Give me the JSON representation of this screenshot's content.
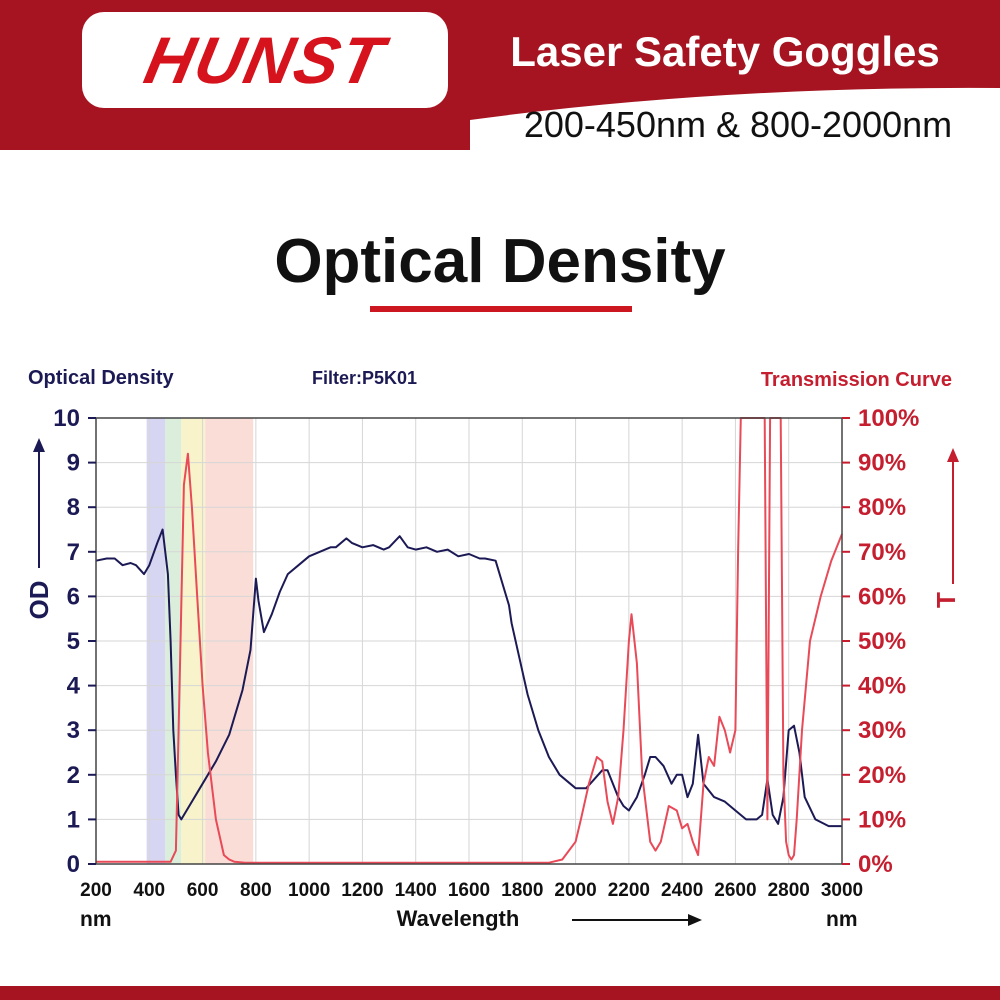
{
  "brand": {
    "logo_text": "HUNST",
    "title": "Laser Safety Goggles",
    "subtitle": "200-450nm & 800-2000nm",
    "accent_color": "#a51420"
  },
  "section_title": "Optical Density",
  "chart_data": {
    "type": "line",
    "title": "Filter:P5K01",
    "left_axis_label": "Optical Density",
    "left_axis_short": "OD",
    "right_axis_label": "Transmission Curve",
    "right_axis_short": "T",
    "xlabel": "Wavelength",
    "x_unit": "nm",
    "xlim": [
      200,
      3000
    ],
    "x_ticks": [
      "200",
      "400",
      "600",
      "800",
      "1000",
      "1200",
      "1400",
      "1600",
      "1800",
      "2000",
      "2200",
      "2400",
      "2600",
      "2800",
      "3000"
    ],
    "ylim_left": [
      0,
      10
    ],
    "left_ticks": [
      "0",
      "1",
      "2",
      "3",
      "4",
      "5",
      "6",
      "7",
      "8",
      "9",
      "10"
    ],
    "ylim_right": [
      0,
      100
    ],
    "right_ticks": [
      "0%",
      "10%",
      "20%",
      "30%",
      "40%",
      "50%",
      "60%",
      "70%",
      "80%",
      "90%",
      "100%"
    ],
    "grid": true,
    "highlight_bands": [
      {
        "from": 390,
        "to": 460,
        "color": "#c8c8ee"
      },
      {
        "from": 460,
        "to": 520,
        "color": "#cfe8cf"
      },
      {
        "from": 520,
        "to": 610,
        "color": "#f5efb8"
      },
      {
        "from": 610,
        "to": 790,
        "color": "#f8d2c8"
      }
    ],
    "series": [
      {
        "name": "Optical Density",
        "axis": "left",
        "color": "#1c1a55",
        "x": [
          200,
          240,
          270,
          300,
          330,
          350,
          380,
          400,
          430,
          450,
          470,
          480,
          490,
          500,
          510,
          520,
          540,
          560,
          600,
          650,
          700,
          750,
          780,
          800,
          810,
          830,
          860,
          890,
          920,
          960,
          1000,
          1040,
          1080,
          1100,
          1140,
          1160,
          1200,
          1240,
          1280,
          1300,
          1340,
          1370,
          1400,
          1440,
          1480,
          1520,
          1560,
          1600,
          1640,
          1660,
          1700,
          1750,
          1760,
          1790,
          1820,
          1860,
          1900,
          1940,
          1980,
          2000,
          2040,
          2070,
          2100,
          2120,
          2140,
          2160,
          2180,
          2200,
          2230,
          2260,
          2280,
          2300,
          2330,
          2360,
          2380,
          2400,
          2420,
          2440,
          2460,
          2480,
          2520,
          2560,
          2600,
          2640,
          2680,
          2700,
          2720,
          2740,
          2760,
          2780,
          2800,
          2820,
          2840,
          2860,
          2900,
          2950,
          3000
        ],
        "y": [
          6.8,
          6.85,
          6.85,
          6.7,
          6.75,
          6.7,
          6.5,
          6.7,
          7.2,
          7.5,
          6.5,
          5.0,
          3.0,
          2.0,
          1.1,
          1.0,
          1.2,
          1.4,
          1.8,
          2.3,
          2.9,
          3.9,
          4.8,
          6.4,
          5.9,
          5.2,
          5.6,
          6.1,
          6.5,
          6.7,
          6.9,
          7.0,
          7.1,
          7.1,
          7.3,
          7.2,
          7.1,
          7.15,
          7.05,
          7.1,
          7.35,
          7.1,
          7.05,
          7.1,
          7.0,
          7.05,
          6.9,
          6.95,
          6.85,
          6.85,
          6.8,
          5.8,
          5.4,
          4.6,
          3.8,
          3.0,
          2.4,
          2.0,
          1.8,
          1.7,
          1.7,
          1.9,
          2.1,
          2.1,
          1.8,
          1.5,
          1.3,
          1.2,
          1.5,
          2.0,
          2.4,
          2.4,
          2.2,
          1.8,
          2.0,
          2.0,
          1.5,
          1.8,
          2.9,
          1.8,
          1.5,
          1.4,
          1.2,
          1.0,
          1.0,
          1.1,
          1.9,
          1.1,
          0.9,
          1.5,
          3.0,
          3.1,
          2.5,
          1.5,
          1.0,
          0.85,
          0.85
        ]
      },
      {
        "name": "Transmission Curve",
        "axis": "right",
        "color": "#e84a58",
        "x": [
          200,
          400,
          480,
          500,
          510,
          530,
          545,
          560,
          580,
          600,
          620,
          650,
          680,
          700,
          720,
          760,
          800,
          1000,
          1200,
          1400,
          1600,
          1800,
          1900,
          1950,
          2000,
          2020,
          2050,
          2080,
          2100,
          2120,
          2140,
          2160,
          2180,
          2200,
          2210,
          2230,
          2250,
          2280,
          2300,
          2320,
          2350,
          2380,
          2400,
          2420,
          2440,
          2460,
          2480,
          2500,
          2520,
          2540,
          2560,
          2580,
          2600,
          2610,
          2620,
          2640,
          2660,
          2680,
          2690,
          2700,
          2710,
          2720,
          2730,
          2740,
          2750,
          2760,
          2770,
          2780,
          2790,
          2800,
          2810,
          2820,
          2830,
          2850,
          2880,
          2920,
          2960,
          3000
        ],
        "y": [
          0.5,
          0.5,
          0.5,
          3,
          30,
          85,
          92,
          80,
          60,
          40,
          25,
          10,
          2,
          1,
          0.5,
          0.3,
          0.3,
          0.3,
          0.3,
          0.3,
          0.3,
          0.3,
          0.3,
          1,
          5,
          10,
          18,
          24,
          23,
          14,
          9,
          15,
          30,
          50,
          56,
          45,
          20,
          5,
          3,
          5,
          13,
          12,
          8,
          9,
          5,
          2,
          18,
          24,
          22,
          33,
          30,
          25,
          30,
          70,
          100,
          100,
          100,
          100,
          100,
          100,
          100,
          10,
          100,
          100,
          100,
          100,
          100,
          20,
          5,
          2,
          1,
          2,
          10,
          30,
          50,
          60,
          68,
          74
        ]
      }
    ]
  }
}
